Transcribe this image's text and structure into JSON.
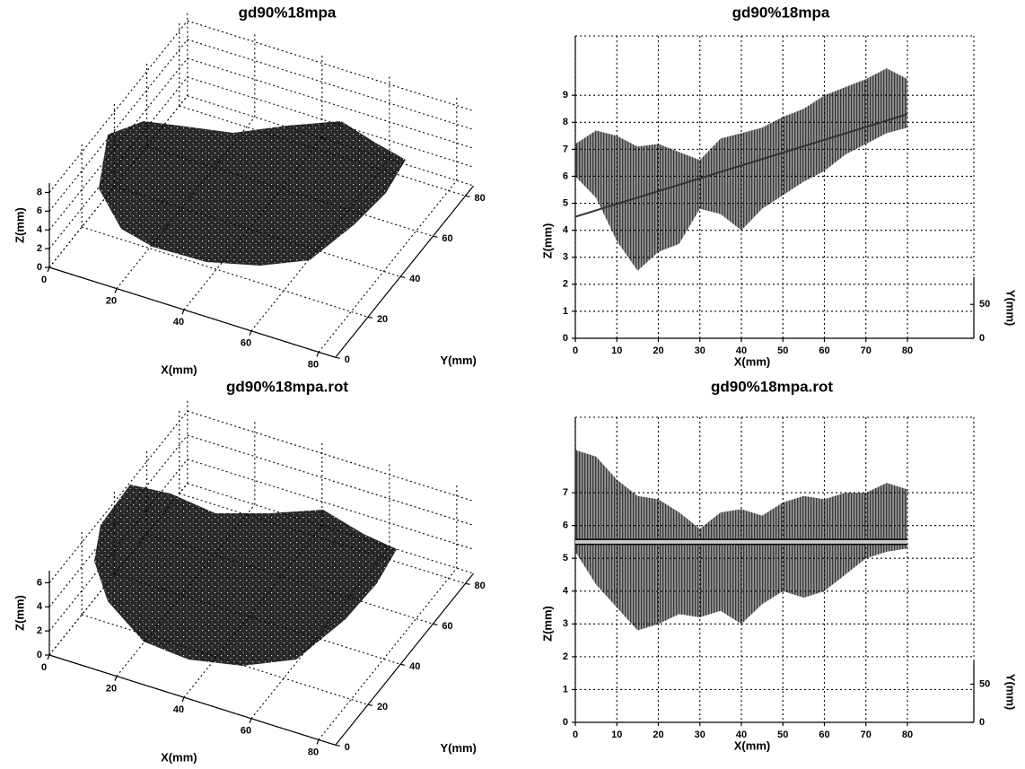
{
  "chart_data": [
    {
      "type": "scatter3d",
      "title": "gd90%18mpa",
      "xlabel": "X(mm)",
      "ylabel": "Y(mm)",
      "zlabel": "Z(mm)",
      "xlim": [
        0,
        85
      ],
      "ylim": [
        0,
        85
      ],
      "zlim": [
        0,
        9
      ],
      "xticks": [
        0,
        20,
        40,
        60,
        80
      ],
      "yticks": [
        0,
        20,
        40,
        60,
        80
      ],
      "zticks": [
        0,
        2,
        4,
        6,
        8
      ],
      "grid": true
    },
    {
      "type": "band",
      "title": "gd90%18mpa",
      "xlabel": "X(mm)",
      "ylabel": "Z(mm)",
      "y2label": "Y(mm)",
      "xlim": [
        0,
        96
      ],
      "ylim": [
        0,
        11.2
      ],
      "y2lim": [
        0,
        90
      ],
      "xticks": [
        0,
        10,
        20,
        30,
        40,
        50,
        60,
        70,
        80
      ],
      "yticks": [
        0,
        1,
        2,
        3,
        4,
        5,
        6,
        7,
        8,
        9
      ],
      "y2ticks": [
        0,
        50
      ],
      "grid": true,
      "x": [
        0,
        5,
        10,
        15,
        20,
        25,
        30,
        35,
        40,
        45,
        50,
        55,
        60,
        65,
        70,
        75,
        80
      ],
      "upper": [
        7.2,
        7.7,
        7.5,
        7.1,
        7.2,
        6.9,
        6.6,
        7.4,
        7.6,
        7.8,
        8.2,
        8.5,
        9.0,
        9.3,
        9.6,
        10.0,
        9.6
      ],
      "lower": [
        6.0,
        5.2,
        3.6,
        2.5,
        3.2,
        3.5,
        4.8,
        4.6,
        4.0,
        4.8,
        5.3,
        5.8,
        6.2,
        6.8,
        7.2,
        7.6,
        7.8
      ],
      "fit": {
        "x": [
          0,
          80
        ],
        "y": [
          4.5,
          8.3
        ]
      }
    },
    {
      "type": "scatter3d",
      "title": "gd90%18mpa.rot",
      "xlabel": "X(mm)",
      "ylabel": "Y(mm)",
      "zlabel": "Z(mm)",
      "xlim": [
        0,
        85
      ],
      "ylim": [
        0,
        85
      ],
      "zlim": [
        0,
        7
      ],
      "xticks": [
        0,
        20,
        40,
        60,
        80
      ],
      "yticks": [
        0,
        20,
        40,
        60,
        80
      ],
      "zticks": [
        0,
        2,
        4,
        6
      ],
      "grid": true
    },
    {
      "type": "band",
      "title": "gd90%18mpa.rot",
      "xlabel": "X(mm)",
      "ylabel": "Z(mm)",
      "y2label": "Y(mm)",
      "xlim": [
        0,
        96
      ],
      "ylim": [
        0,
        9.3
      ],
      "y2lim": [
        0,
        80
      ],
      "xticks": [
        0,
        10,
        20,
        30,
        40,
        50,
        60,
        70,
        80
      ],
      "yticks": [
        0,
        1,
        2,
        3,
        4,
        5,
        6,
        7
      ],
      "y2ticks": [
        0,
        50
      ],
      "grid": true,
      "x": [
        0,
        5,
        10,
        15,
        20,
        25,
        30,
        35,
        40,
        45,
        50,
        55,
        60,
        65,
        70,
        75,
        80
      ],
      "upper": [
        8.3,
        8.1,
        7.4,
        6.9,
        6.8,
        6.4,
        5.9,
        6.4,
        6.5,
        6.3,
        6.7,
        6.9,
        6.8,
        7.0,
        7.0,
        7.3,
        7.1
      ],
      "lower": [
        5.2,
        4.2,
        3.5,
        2.8,
        3.0,
        3.3,
        3.2,
        3.4,
        3.0,
        3.6,
        4.0,
        3.8,
        4.0,
        4.5,
        5.0,
        5.2,
        5.3
      ],
      "fit": {
        "x": [
          0,
          80
        ],
        "y": [
          5.5,
          5.5
        ]
      }
    }
  ]
}
